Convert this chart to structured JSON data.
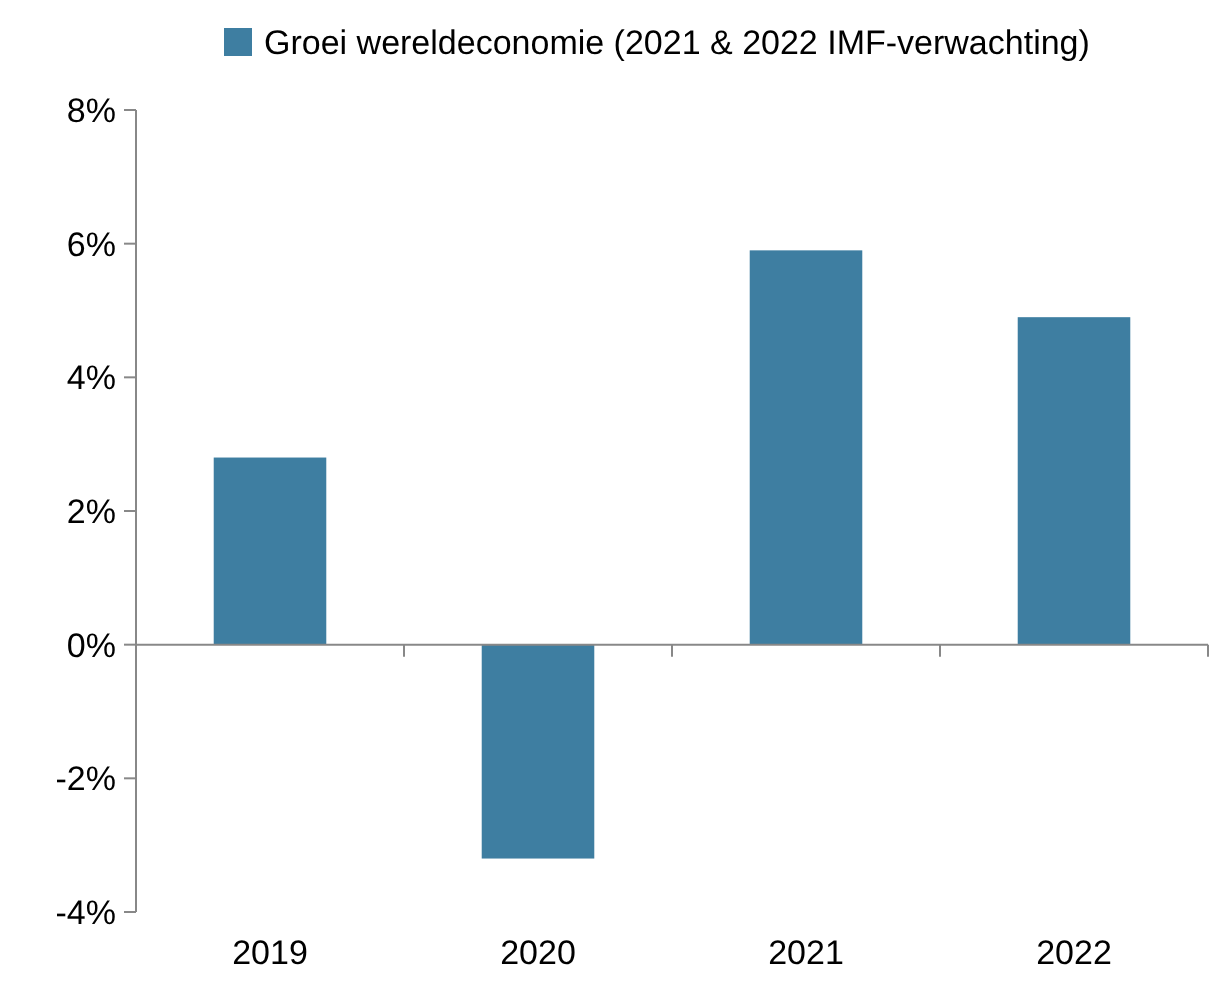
{
  "chart_data": {
    "type": "bar",
    "categories": [
      "2019",
      "2020",
      "2021",
      "2022"
    ],
    "series": [
      {
        "name": "Groei wereldeconomie (2021 & 2022 IMF-verwachting)",
        "color": "#3e7ea1",
        "values": [
          2.8,
          -3.2,
          5.9,
          4.9
        ]
      }
    ],
    "ylim": [
      -4,
      8
    ],
    "yticks": [
      {
        "value": -4,
        "label": "-4%"
      },
      {
        "value": -2,
        "label": "-2%"
      },
      {
        "value": 0,
        "label": "0%"
      },
      {
        "value": 2,
        "label": "2%"
      },
      {
        "value": 4,
        "label": "4%"
      },
      {
        "value": 6,
        "label": "6%"
      },
      {
        "value": 8,
        "label": "8%"
      }
    ],
    "legend": "top"
  }
}
